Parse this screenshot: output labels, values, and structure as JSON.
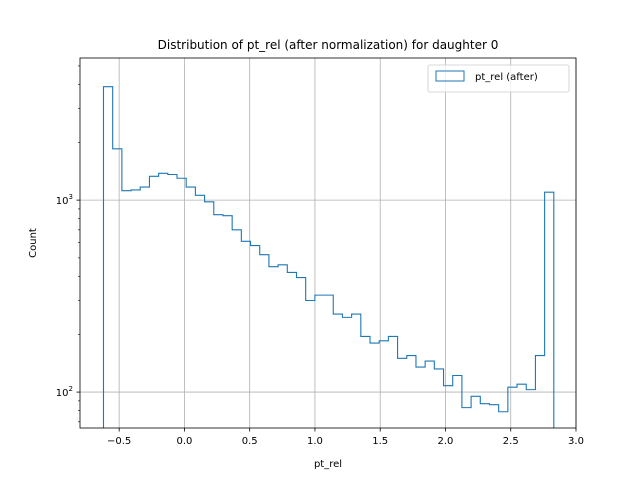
{
  "chart_data": {
    "type": "histogram",
    "title": "Distribution of pt_rel (after normalization) for daughter 0",
    "xlabel": "pt_rel",
    "ylabel": "Count",
    "xlim": [
      -0.8,
      3.0
    ],
    "ylim": [
      65,
      5500
    ],
    "yscale": "log",
    "grid": true,
    "legend_position": "top-right",
    "xticks": [
      -0.5,
      0.0,
      0.5,
      1.0,
      1.5,
      2.0,
      2.5,
      3.0
    ],
    "xtick_labels": [
      "−0.5",
      "0.0",
      "0.5",
      "1.0",
      "1.5",
      "2.0",
      "2.5",
      "3.0"
    ],
    "yticks": [
      {
        "value": 100,
        "base": "10",
        "exp": "2"
      },
      {
        "value": 1000,
        "base": "10",
        "exp": "3"
      }
    ],
    "series": [
      {
        "name": "pt_rel (after)",
        "color": "#1f77b4",
        "bin_start": -0.62,
        "bin_end": 2.83,
        "counts": [
          3900,
          1850,
          1120,
          1130,
          1170,
          1330,
          1380,
          1360,
          1300,
          1170,
          1060,
          980,
          840,
          830,
          700,
          610,
          580,
          520,
          450,
          460,
          420,
          395,
          300,
          320,
          320,
          255,
          245,
          255,
          195,
          180,
          185,
          195,
          150,
          155,
          135,
          145,
          132,
          108,
          122,
          83,
          95,
          87,
          86,
          79,
          106,
          110,
          103,
          155,
          1100
        ]
      }
    ]
  }
}
